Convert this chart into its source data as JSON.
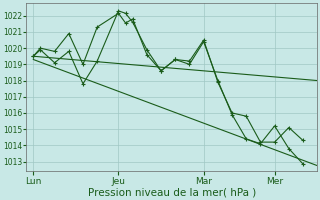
{
  "background_color": "#c8e8e6",
  "grid_color": "#a0c8c4",
  "line_color": "#1a5c1a",
  "xlabel": "Pression niveau de la mer( hPa )",
  "xlabel_fontsize": 7.5,
  "ylim": [
    1012.4,
    1022.8
  ],
  "yticks": [
    1013,
    1014,
    1015,
    1016,
    1017,
    1018,
    1019,
    1020,
    1021,
    1022
  ],
  "ytick_fontsize": 5.5,
  "xtick_labels": [
    "Lun",
    "Jeu",
    "Mar",
    "Mer"
  ],
  "xtick_positions": [
    0,
    12,
    24,
    34
  ],
  "xtick_fontsize": 6.5,
  "xlim": [
    -1,
    40
  ],
  "trend1_x": [
    0,
    40
  ],
  "trend1_y": [
    1019.5,
    1018.0
  ],
  "trend2_x": [
    0,
    40
  ],
  "trend2_y": [
    1019.3,
    1012.75
  ],
  "wiggly1_x": [
    0,
    1,
    3,
    5,
    7,
    9,
    12,
    13,
    14,
    16,
    18,
    20,
    22,
    24,
    26,
    28,
    30,
    32,
    34,
    36,
    38
  ],
  "wiggly1_y": [
    1019.5,
    1020.0,
    1019.8,
    1020.9,
    1019.0,
    1021.3,
    1022.15,
    1021.55,
    1021.8,
    1019.6,
    1018.6,
    1019.3,
    1019.2,
    1020.5,
    1017.9,
    1016.0,
    1015.8,
    1014.2,
    1014.2,
    1015.1,
    1014.3
  ],
  "wiggly2_x": [
    0,
    1,
    3,
    5,
    7,
    9,
    12,
    13,
    14,
    16,
    18,
    20,
    22,
    24,
    26,
    28,
    30,
    32,
    34,
    36,
    38
  ],
  "wiggly2_y": [
    1019.5,
    1019.9,
    1019.1,
    1019.8,
    1017.8,
    1019.2,
    1022.3,
    1022.15,
    1021.6,
    1019.9,
    1018.6,
    1019.3,
    1019.0,
    1020.4,
    1018.0,
    1015.9,
    1014.4,
    1014.1,
    1015.2,
    1013.8,
    1012.85
  ]
}
